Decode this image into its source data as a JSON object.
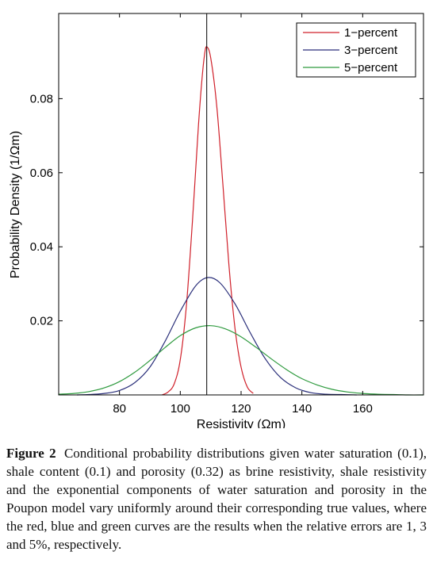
{
  "chart_data": {
    "type": "line",
    "title": "",
    "xlabel": "Resistivity (Ωm)",
    "ylabel": "Probability Density (1/Ωm)",
    "xlim": [
      60,
      180
    ],
    "ylim": [
      0,
      0.103
    ],
    "xticks": [
      80,
      100,
      120,
      140,
      160
    ],
    "yticks": [
      0.02,
      0.04,
      0.06,
      0.08
    ],
    "xtick_labels": [
      "80",
      "100",
      "120",
      "140",
      "160"
    ],
    "ytick_labels": [
      "0.02",
      "0.04",
      "0.06",
      "0.08"
    ],
    "grid": false,
    "legend_position": "top-right",
    "reference_line": {
      "x": 108.7,
      "color": "#000000"
    },
    "series": [
      {
        "name": "1−percent",
        "color": "#d0202a",
        "x": [
          94,
          96,
          98,
          100,
          102,
          104,
          106,
          107,
          108,
          108.7,
          110,
          112,
          114,
          116,
          118,
          120,
          122,
          124
        ],
        "y": [
          0.0,
          0.0008,
          0.003,
          0.0095,
          0.024,
          0.047,
          0.073,
          0.084,
          0.092,
          0.094,
          0.091,
          0.078,
          0.057,
          0.035,
          0.018,
          0.0075,
          0.0022,
          0.0004
        ]
      },
      {
        "name": "3−percent",
        "color": "#2a2f7a",
        "x": [
          66,
          70,
          75,
          80,
          85,
          90,
          95,
          100,
          105,
          109,
          113,
          118,
          123,
          128,
          133,
          138,
          143,
          148,
          153,
          158
        ],
        "y": [
          0.0,
          0.0001,
          0.0004,
          0.0012,
          0.0033,
          0.0075,
          0.0145,
          0.0226,
          0.0294,
          0.0317,
          0.0303,
          0.0246,
          0.0168,
          0.0097,
          0.0047,
          0.0019,
          0.0006,
          0.0002,
          0.0001,
          0.0
        ]
      },
      {
        "name": "5−percent",
        "color": "#2e9a3e",
        "x": [
          60,
          65,
          70,
          75,
          80,
          85,
          90,
          95,
          100,
          105,
          110,
          115,
          120,
          125,
          130,
          135,
          140,
          145,
          150,
          155,
          160,
          165,
          170,
          175,
          180
        ],
        "y": [
          0.0002,
          0.0004,
          0.0009,
          0.0019,
          0.0036,
          0.0061,
          0.0093,
          0.0128,
          0.016,
          0.0181,
          0.0187,
          0.0178,
          0.0157,
          0.0128,
          0.0097,
          0.0068,
          0.0044,
          0.0027,
          0.0015,
          0.0008,
          0.0004,
          0.0002,
          0.0001,
          0.0,
          0.0
        ]
      }
    ]
  },
  "caption": {
    "label": "Figure 2",
    "text": "Conditional probability distributions given water saturation (0.1), shale content (0.1) and porosity (0.32) as brine resistivity, shale resistivity and the exponential components of water saturation and porosity in the Poupon model vary uniformly around their corresponding true values, where the red, blue and green curves are the results when the relative errors are 1, 3 and 5%, respectively."
  }
}
